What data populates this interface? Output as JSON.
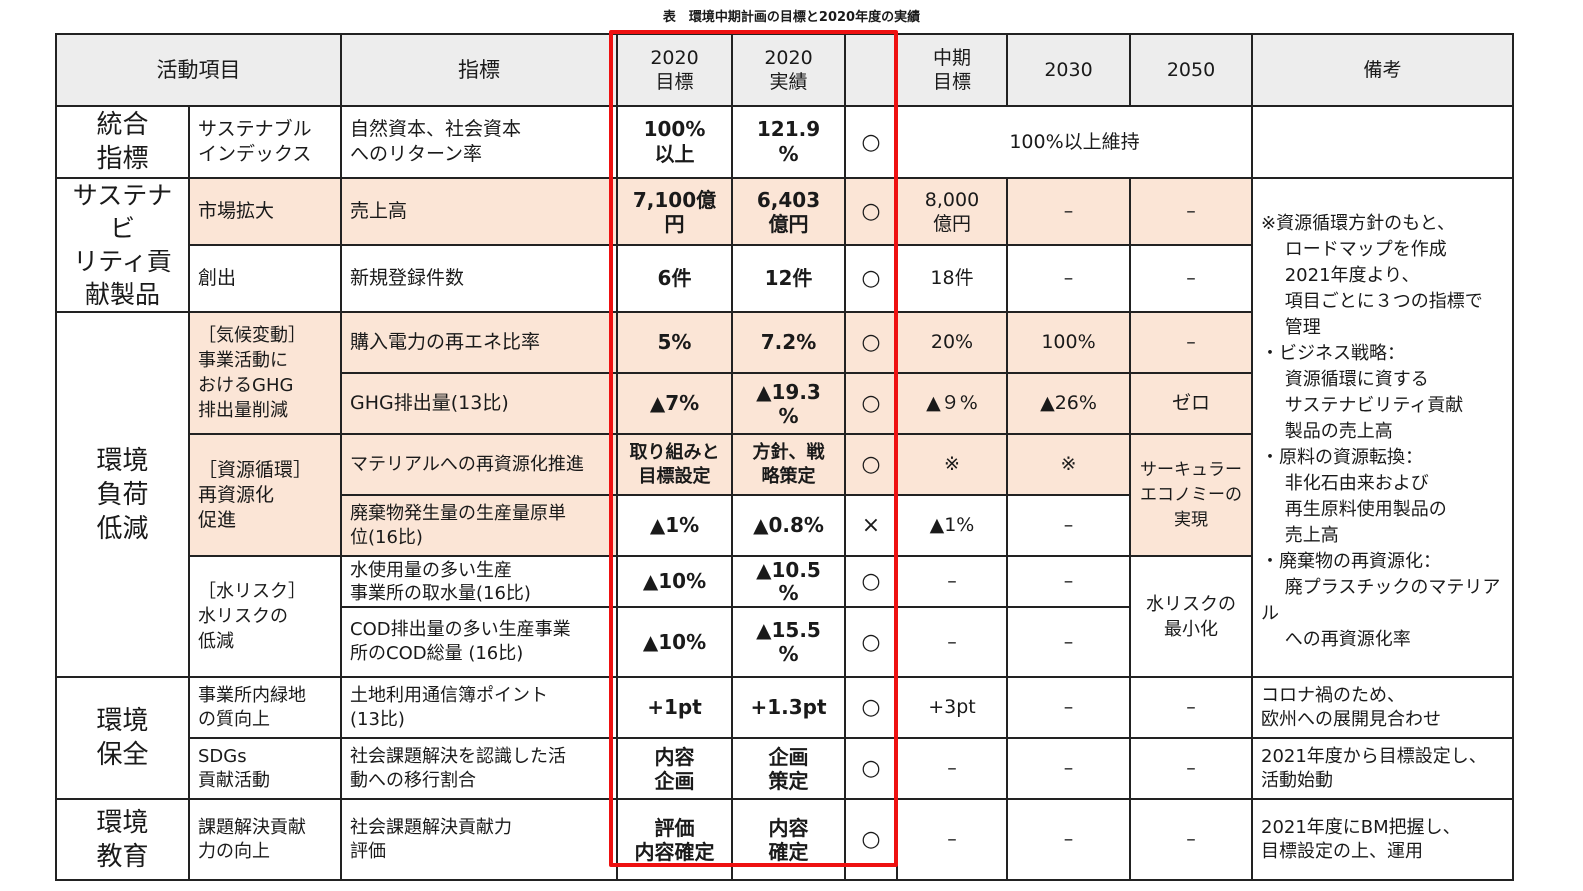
{
  "caption": "表　環境中期計画の目標と2020年度の実績",
  "headers": {
    "activity": "活動項目",
    "indicator": "指標",
    "target2020": "2020\n目標",
    "result2020": "2020\n実績",
    "eval": "",
    "midterm": "中期\n目標",
    "y2030": "2030",
    "y2050": "2050",
    "remarks": "備考"
  },
  "rows": {
    "r1": {
      "cat": "統合\n指標",
      "sub": "サステナブル\nインデックス",
      "ind": "自然資本、社会資本\nへのリターン率",
      "t2020": "100%\n以上",
      "r2020": "121.9\n%",
      "eval": "○",
      "merged": "100%以上維持"
    },
    "r2": {
      "cat": "サステナビ\nリティ貢\n献製品",
      "sub": "市場拡大",
      "ind": "売上高",
      "t2020": "7,100億\n円",
      "r2020": "6,403\n億円",
      "eval": "○",
      "mid": "8,000\n億円",
      "y2030": "–",
      "y2050": "–"
    },
    "r3": {
      "sub": "創出",
      "ind": "新規登録件数",
      "t2020": "6件",
      "r2020": "12件",
      "eval": "○",
      "mid": "18件",
      "y2030": "–",
      "y2050": "–"
    },
    "r4": {
      "cat": "環境\n負荷\n低減",
      "sub": "［気候変動］\n事業活動に\nおけるGHG\n排出量削減",
      "ind": "購入電力の再エネ比率",
      "t2020": "5%",
      "r2020": "7.2%",
      "eval": "○",
      "mid": "20%",
      "y2030": "100%",
      "y2050": "–"
    },
    "r5": {
      "ind": "GHG排出量(13比)",
      "t2020": "▲7%",
      "r2020": "▲19.3\n%",
      "eval": "○",
      "mid": "▲９%",
      "y2030": "▲26%",
      "y2050": "ゼロ"
    },
    "r6": {
      "sub": "［資源循環］\n再資源化\n促進",
      "ind": "マテリアルへの再資源化推進",
      "t2020": "取り組みと\n目標設定",
      "r2020": "方針、戦\n略策定",
      "eval": "○",
      "mid": "※",
      "y2030": "※",
      "y2050": "サーキュラー\nエコノミーの\n実現"
    },
    "r7": {
      "ind": "廃棄物発生量の生産量原単\n位(16比)",
      "t2020": "▲1%",
      "r2020": "▲0.8%",
      "eval": "×",
      "mid": "▲1%",
      "y2030": "–"
    },
    "r8": {
      "sub": "［水リスク］\n水リスクの\n低減",
      "ind": "水使用量の多い生産\n事業所の取水量(16比)",
      "t2020": "▲10%",
      "r2020": "▲10.5\n%",
      "eval": "○",
      "mid": "–",
      "y2030": "–",
      "y2050": "水リスクの\n最小化"
    },
    "r9": {
      "ind": "COD排出量の多い生産事業\n所のCOD総量 (16比)",
      "t2020": "▲10%",
      "r2020": "▲15.5\n%",
      "eval": "○",
      "mid": "–",
      "y2030": "–"
    },
    "r10": {
      "cat": "環境\n保全",
      "sub": "事業所内緑地\nの質向上",
      "ind": "土地利用通信簿ポイント\n(13比)",
      "t2020": "+1pt",
      "r2020": "+1.3pt",
      "eval": "○",
      "mid": "+3pt",
      "y2030": "–",
      "y2050": "–",
      "rem": "コロナ禍のため、\n欧州への展開見合わせ"
    },
    "r11": {
      "sub": "SDGs\n貢献活動",
      "ind": "社会課題解決を認識した活\n動への移行割合",
      "t2020": "内容\n企画",
      "r2020": "企画\n策定",
      "eval": "○",
      "mid": "–",
      "y2030": "–",
      "y2050": "–",
      "rem": "2021年度から目標設定し、\n活動始動"
    },
    "r12": {
      "cat": "環境\n教育",
      "sub": "課題解決貢献\n力の向上",
      "ind": "社会課題解決貢献力\n評価",
      "t2020": "評価\n内容確定",
      "r2020": "内容\n確定",
      "eval": "○",
      "mid": "–",
      "y2030": "–",
      "y2050": "–",
      "rem": "2021年度にBM把握し、\n目標設定の上、運用"
    }
  },
  "remarks_shared": "※資源循環方針のもと、\n　 ロードマップを作成\n　 2021年度より、\n　 項目ごとに３つの指標で\n　 管理\n・ビジネス戦略：\n　 資源循環に資する\n　 サステナビリティ貢献\n　 製品の売上高\n・原料の資源転換：\n　 非化石由来および\n　 再生原料使用製品の\n　 売上高\n・廃棄物の再資源化：\n　 廃プラスチックのマテリアル\n　 への再資源化率",
  "colors": {
    "highlight_border": "#ee1111",
    "pink_fill": "#fbe5d6",
    "header_fill": "#ededed"
  }
}
